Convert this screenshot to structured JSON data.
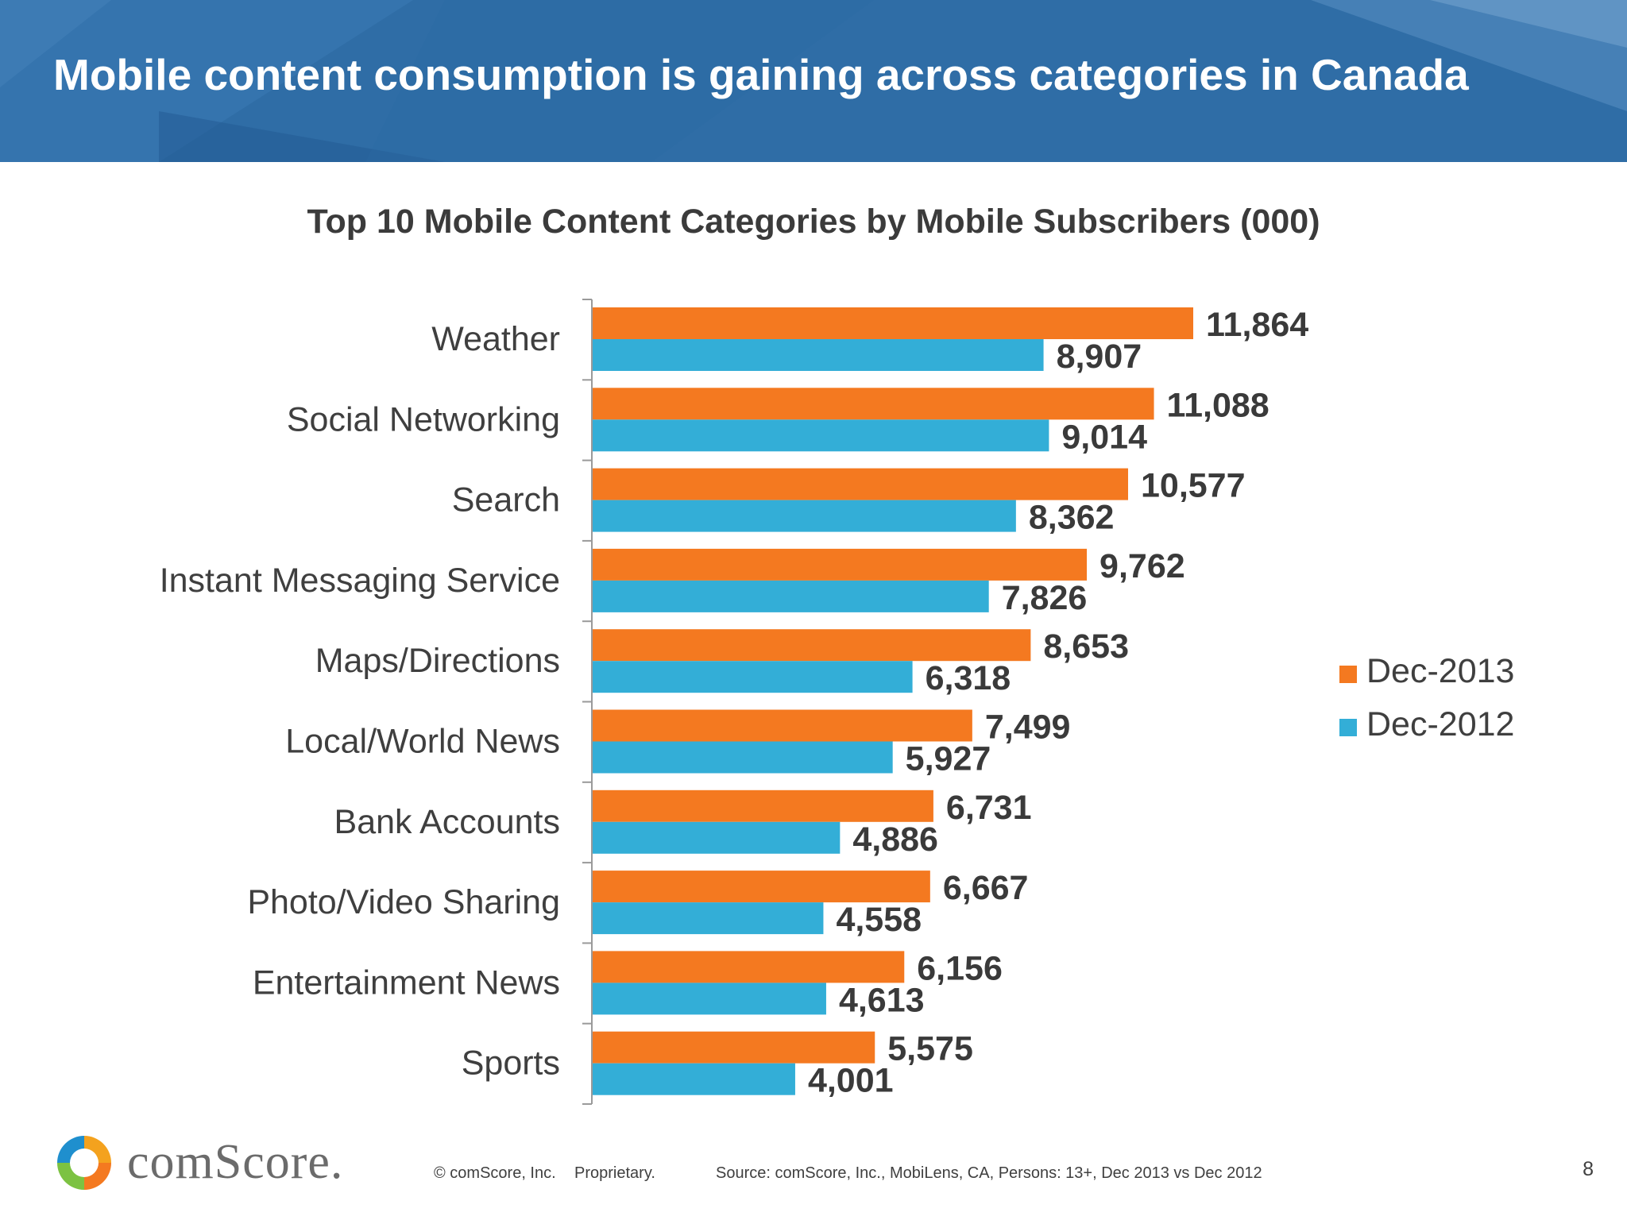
{
  "slide": {
    "title": "Mobile content consumption is gaining across categories in Canada",
    "page_number": "8"
  },
  "colors": {
    "header": "#2f6da6",
    "dec_2013": "#f47920",
    "dec_2012": "#33aed7"
  },
  "chart_data": {
    "type": "bar",
    "orientation": "horizontal",
    "title": "Top 10 Mobile Content Categories by Mobile Subscribers (000)",
    "categories": [
      "Weather",
      "Social Networking",
      "Search",
      "Instant Messaging Service",
      "Maps/Directions",
      "Local/World News",
      "Bank Accounts",
      "Photo/Video Sharing",
      "Entertainment News",
      "Sports"
    ],
    "series": [
      {
        "name": "Dec-2013",
        "color": "#f47920",
        "values": [
          11864,
          11088,
          10577,
          9762,
          8653,
          7499,
          6731,
          6667,
          6156,
          5575
        ],
        "labels": [
          "11,864",
          "11,088",
          "10,577",
          "9,762",
          "8,653",
          "7,499",
          "6,731",
          "6,667",
          "6,156",
          "5,575"
        ]
      },
      {
        "name": "Dec-2012",
        "color": "#33aed7",
        "values": [
          8907,
          9014,
          8362,
          7826,
          6318,
          5927,
          4886,
          4558,
          4613,
          4001
        ],
        "labels": [
          "8,907",
          "9,014",
          "8,362",
          "7,826",
          "6,318",
          "5,927",
          "4,886",
          "4,558",
          "4,613",
          "4,001"
        ]
      }
    ],
    "xlim": [
      0,
      12000
    ],
    "grid": false,
    "legend_position": "right"
  },
  "footer": {
    "logo_text": "comScore.",
    "copyright": "© comScore, Inc.",
    "proprietary": "Proprietary.",
    "source": "Source: comScore, Inc., MobiLens, CA, Persons: 13+, Dec 2013 vs Dec 2012"
  }
}
